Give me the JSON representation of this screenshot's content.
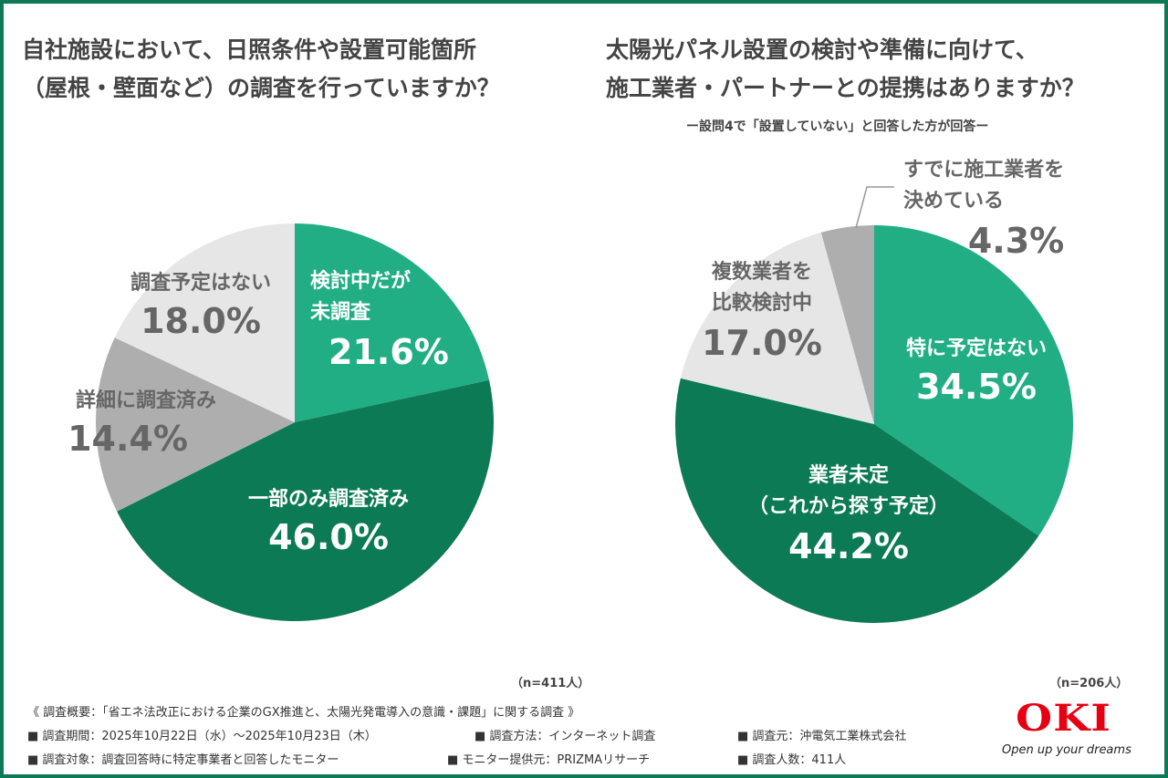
{
  "chart_data": [
    {
      "type": "pie",
      "title_lines": [
        "自社施設において、日照条件や設置可能箇所",
        "（屋根・壁面など）の調査を行っていますか？"
      ],
      "n_label": "（n=411人）",
      "slices": [
        {
          "label": "検討中だが\n未調査",
          "value": 21.6,
          "value_label": "21.6%",
          "color": "#22ae84",
          "text": "white"
        },
        {
          "label": "一部のみ調査済み",
          "value": 46.0,
          "value_label": "46.0%",
          "color": "#0b7a55",
          "text": "white"
        },
        {
          "label": "詳細に調査済み",
          "value": 14.4,
          "value_label": "14.4%",
          "color": "#aeaeae",
          "text": "gray"
        },
        {
          "label": "調査予定はない",
          "value": 18.0,
          "value_label": "18.0%",
          "color": "#e6e6e6",
          "text": "gray"
        }
      ]
    },
    {
      "type": "pie",
      "title_lines": [
        "太陽光パネル設置の検討や準備に向けて、",
        "施工業者・パートナーとの提携はありますか？"
      ],
      "subtitle": "ー設問4で「設置していない」と回答した方が回答ー",
      "n_label": "（n=206人）",
      "slices": [
        {
          "label": "特に予定はない",
          "value": 34.5,
          "value_label": "34.5%",
          "color": "#22ae84",
          "text": "white"
        },
        {
          "label": "業者未定\n（これから探す予定）",
          "value": 44.2,
          "value_label": "44.2%",
          "color": "#0b7a55",
          "text": "white"
        },
        {
          "label": "複数業者を\n比較検討中",
          "value": 17.0,
          "value_label": "17.0%",
          "color": "#e6e6e6",
          "text": "gray"
        },
        {
          "label": "すでに施工業者を\n決めている",
          "value": 4.3,
          "value_label": "4.3%",
          "color": "#aeaeae",
          "text": "gray"
        }
      ]
    }
  ],
  "footer": {
    "overview": "《 調査概要：「省エネ法改正における企業のGX推進と、太陽光発電導入の意識・課題」に関する調査 》",
    "items": [
      "■ 調査期間：2025年10月22日（水）～2025年10月23日（木）",
      "■ 調査方法：インターネット調査",
      "■ 調査元：沖電気工業株式会社",
      "■ 調査対象：調査回答時に特定事業者と回答したモニター",
      "■ モニター提供元：PRIZMAリサーチ",
      "■ 調査人数：411人"
    ]
  },
  "logo": {
    "text": "OKI",
    "slogan": "Open up your dreams"
  }
}
